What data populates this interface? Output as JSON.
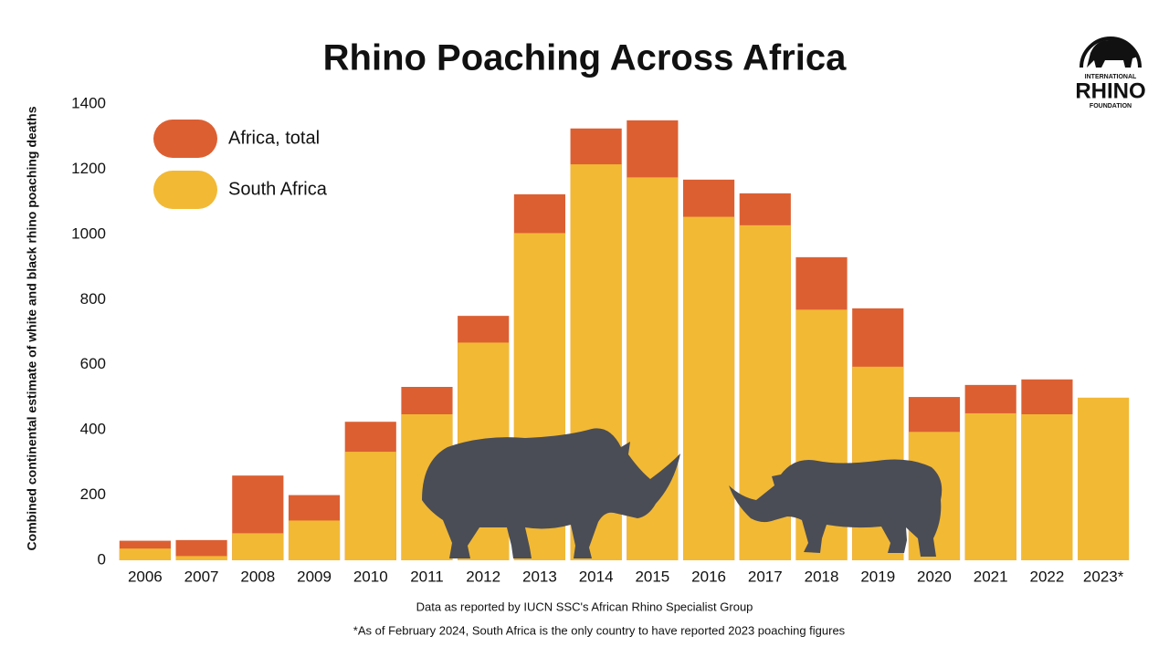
{
  "chart_data": {
    "type": "bar",
    "title": "Rhino Poaching Across Africa",
    "y_label": "Combined continental estimate of white and black rhino poaching deaths",
    "categories": [
      "2006",
      "2007",
      "2008",
      "2009",
      "2010",
      "2011",
      "2012",
      "2013",
      "2014",
      "2015",
      "2016",
      "2017",
      "2018",
      "2019",
      "2020",
      "2021",
      "2022",
      "2023*"
    ],
    "series": [
      {
        "name": "Africa, total",
        "color": "#dc5f32",
        "values": [
          60,
          62,
          260,
          200,
          425,
          532,
          750,
          1123,
          1325,
          1350,
          1168,
          1126,
          930,
          773,
          501,
          538,
          555,
          null
        ]
      },
      {
        "name": "South Africa",
        "color": "#f2b935",
        "values": [
          36,
          13,
          83,
          122,
          333,
          448,
          668,
          1004,
          1215,
          1175,
          1054,
          1028,
          769,
          594,
          394,
          451,
          448,
          499
        ]
      }
    ],
    "ylim": [
      0,
      1400
    ],
    "yticks": [
      0,
      200,
      400,
      600,
      800,
      1000,
      1200,
      1400
    ],
    "legend": "top-left",
    "notes": [
      "Data as reported by IUCN SSC's African Rhino Specialist Group",
      "*As of February 2024, South Africa is the only country to have reported 2023 poaching figures"
    ],
    "logo": {
      "top": "INTERNATIONAL",
      "middle": "RHINO",
      "bottom": "FOUNDATION"
    }
  }
}
